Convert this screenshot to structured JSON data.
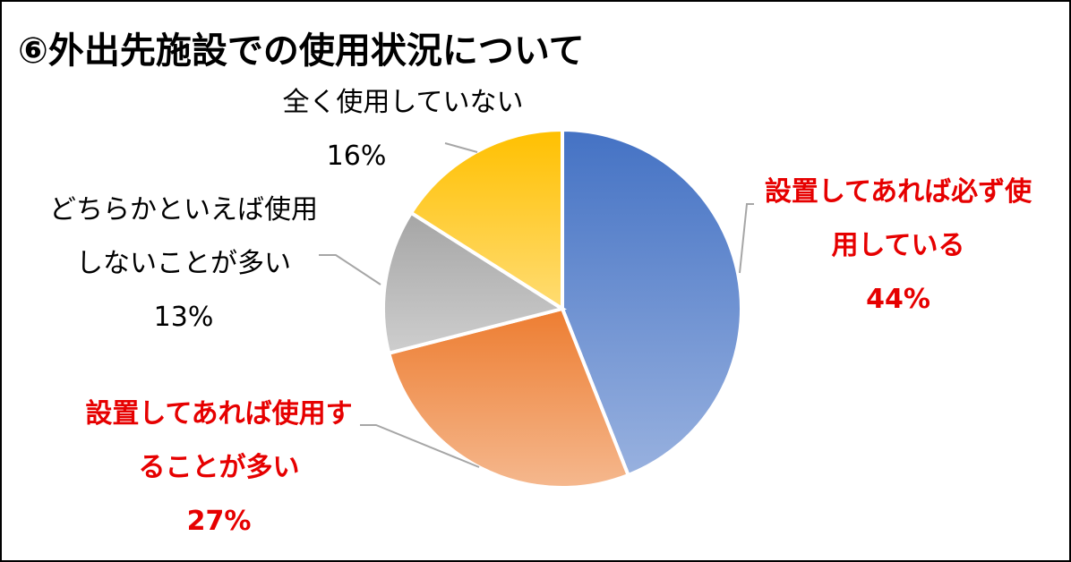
{
  "chart_data": {
    "type": "pie",
    "title": "⑥外出先施設での使用状況について",
    "categories": [
      "設置してあれば必ず使用している",
      "設置してあれば使用することが多い",
      "どちらかといえば使用しないことが多い",
      "全く使用していない"
    ],
    "values": [
      44,
      27,
      13,
      16
    ],
    "value_labels": [
      "44%",
      "27%",
      "13%",
      "16%"
    ],
    "colors": [
      "#4472c4",
      "#ed7d31",
      "#a5a5a5",
      "#ffc000"
    ],
    "label_colors": [
      "#e60000",
      "#e60000",
      "#000000",
      "#000000"
    ],
    "label_bold": [
      true,
      true,
      false,
      false
    ]
  }
}
